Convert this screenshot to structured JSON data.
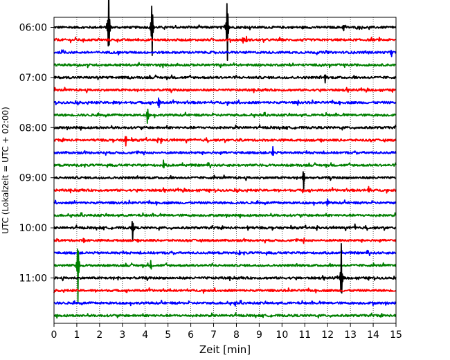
{
  "chart_data": {
    "type": "line",
    "title": "",
    "xlabel": "Zeit  [min]",
    "ylabel": "UTC (Lokalzeit = UTC + 02:00)",
    "xlim": [
      0,
      15
    ],
    "x_ticks": [
      0,
      1,
      2,
      3,
      4,
      5,
      6,
      7,
      8,
      9,
      10,
      11,
      12,
      13,
      14,
      15
    ],
    "y_tick_labels": [
      "06:00",
      "07:00",
      "08:00",
      "09:00",
      "10:00",
      "11:00"
    ],
    "start_time": "06:00",
    "trace_interval_minutes": 15,
    "trace_count": 24,
    "trace_colors": [
      "#000000",
      "#ff0000",
      "#0000ff",
      "#008000"
    ],
    "vertical_gridlines": "dotted",
    "events": [
      {
        "trace": 0,
        "minute": 2.4,
        "amplitude": 6.5
      },
      {
        "trace": 0,
        "minute": 4.3,
        "amplitude": 5.5
      },
      {
        "trace": 0,
        "minute": 7.6,
        "amplitude": 6.5
      },
      {
        "trace": 0,
        "minute": 12.7,
        "amplitude": 0.5
      },
      {
        "trace": 1,
        "minute": 8.3,
        "amplitude": 0.7
      },
      {
        "trace": 1,
        "minute": 8.45,
        "amplitude": 0.5
      },
      {
        "trace": 1,
        "minute": 10.9,
        "amplitude": 0.3
      },
      {
        "trace": 2,
        "minute": 14.8,
        "amplitude": 0.7
      },
      {
        "trace": 4,
        "minute": 11.9,
        "amplitude": 0.9
      },
      {
        "trace": 6,
        "minute": 4.6,
        "amplitude": 1.2
      },
      {
        "trace": 6,
        "minute": 2.6,
        "amplitude": 0.3
      },
      {
        "trace": 6,
        "minute": 10.7,
        "amplitude": 0.4
      },
      {
        "trace": 7,
        "minute": 4.1,
        "amplitude": 1.8
      },
      {
        "trace": 9,
        "minute": 3.15,
        "amplitude": 1.0
      },
      {
        "trace": 9,
        "minute": 4.7,
        "amplitude": 0.5
      },
      {
        "trace": 10,
        "minute": 9.6,
        "amplitude": 0.8
      },
      {
        "trace": 11,
        "minute": 4.8,
        "amplitude": 0.7
      },
      {
        "trace": 12,
        "minute": 10.95,
        "amplitude": 1.8
      },
      {
        "trace": 13,
        "minute": 13.8,
        "amplitude": 0.6
      },
      {
        "trace": 13,
        "minute": 10.9,
        "amplitude": 0.4
      },
      {
        "trace": 14,
        "minute": 12.0,
        "amplitude": 0.6
      },
      {
        "trace": 14,
        "minute": 0.9,
        "amplitude": 0.3
      },
      {
        "trace": 16,
        "minute": 3.45,
        "amplitude": 2.0
      },
      {
        "trace": 16,
        "minute": 8.5,
        "amplitude": 0.5
      },
      {
        "trace": 16,
        "minute": 13.2,
        "amplitude": 0.5
      },
      {
        "trace": 17,
        "minute": 1.3,
        "amplitude": 0.5
      },
      {
        "trace": 17,
        "minute": 10.95,
        "amplitude": 0.5
      },
      {
        "trace": 18,
        "minute": 8.15,
        "amplitude": 0.5
      },
      {
        "trace": 19,
        "minute": 1.05,
        "amplitude": 5.5
      },
      {
        "trace": 19,
        "minute": 4.25,
        "amplitude": 0.8
      },
      {
        "trace": 20,
        "minute": 12.6,
        "amplitude": 5.2
      },
      {
        "trace": 20,
        "minute": 2.8,
        "amplitude": 0.4
      },
      {
        "trace": 21,
        "minute": 5.1,
        "amplitude": 0.4
      },
      {
        "trace": 22,
        "minute": 7.95,
        "amplitude": 0.5
      },
      {
        "trace": 22,
        "minute": 14.0,
        "amplitude": 0.3
      }
    ]
  }
}
